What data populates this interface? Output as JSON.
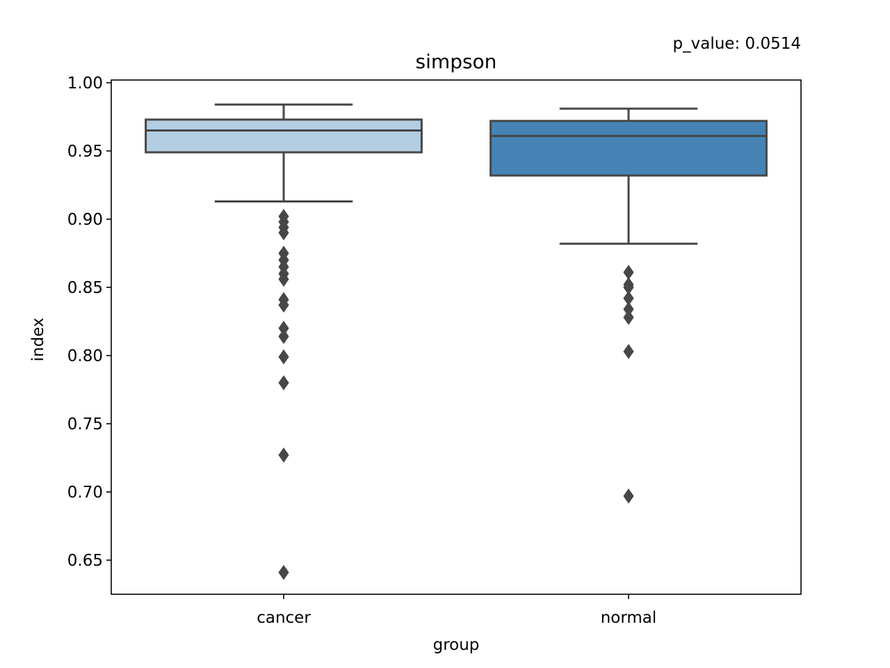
{
  "chart_data": {
    "type": "box",
    "title": "simpson",
    "annotation": "p_value: 0.0514",
    "xlabel": "group",
    "ylabel": "index",
    "ylim": [
      0.625,
      1.002
    ],
    "yticks": [
      "0.65",
      "0.70",
      "0.75",
      "0.80",
      "0.85",
      "0.90",
      "0.95",
      "1.00"
    ],
    "categories": [
      "cancer",
      "normal"
    ],
    "grid": false,
    "series": [
      {
        "category": "cancer",
        "color": "#b3cde3",
        "whisker_low": 0.913,
        "q1": 0.949,
        "median": 0.965,
        "q3": 0.973,
        "whisker_high": 0.984,
        "outliers": [
          0.902,
          0.898,
          0.894,
          0.89,
          0.875,
          0.87,
          0.865,
          0.86,
          0.856,
          0.841,
          0.837,
          0.82,
          0.814,
          0.799,
          0.78,
          0.727,
          0.641
        ]
      },
      {
        "category": "normal",
        "color": "#4682b4",
        "whisker_low": 0.882,
        "q1": 0.932,
        "median": 0.961,
        "q3": 0.972,
        "whisker_high": 0.981,
        "outliers": [
          0.861,
          0.852,
          0.85,
          0.842,
          0.834,
          0.828,
          0.803,
          0.697
        ]
      }
    ]
  }
}
